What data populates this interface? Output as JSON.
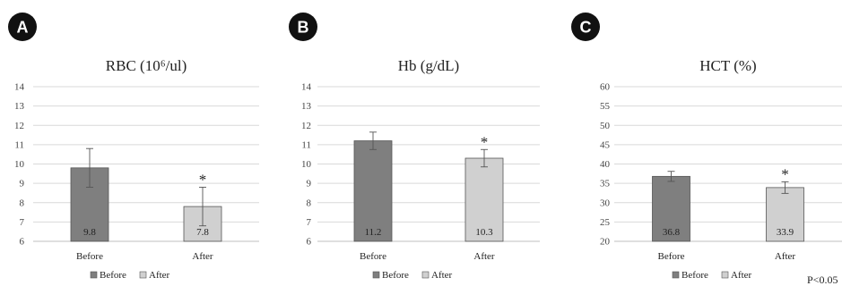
{
  "colors": {
    "before": "#7f7f7f",
    "after": "#d0d0d0",
    "badge": "#111111",
    "grid": "#d9d9d9"
  },
  "chart_data": [
    {
      "panel": "A",
      "type": "bar",
      "title": "RBC (10⁶/ul)",
      "categories": [
        "Before",
        "After"
      ],
      "values": [
        9.8,
        7.8
      ],
      "value_labels": [
        "9.8",
        "7.8"
      ],
      "error": [
        1.0,
        1.0
      ],
      "significance": [
        "",
        "*"
      ],
      "ylim": [
        6,
        14
      ],
      "yticks": [
        "6",
        "7",
        "8",
        "9",
        "10",
        "11",
        "12",
        "13",
        "14"
      ],
      "legend": [
        "Before",
        "After"
      ],
      "legend_position": "bottom",
      "grid": true
    },
    {
      "panel": "B",
      "type": "bar",
      "title": "Hb (g/dL)",
      "categories": [
        "Before",
        "After"
      ],
      "values": [
        11.2,
        10.3
      ],
      "value_labels": [
        "11.2",
        "10.3"
      ],
      "error": [
        0.45,
        0.45
      ],
      "significance": [
        "",
        "*"
      ],
      "ylim": [
        6,
        14
      ],
      "yticks": [
        "6",
        "7",
        "8",
        "9",
        "10",
        "11",
        "12",
        "13",
        "14"
      ],
      "legend": [
        "Before",
        "After"
      ],
      "legend_position": "bottom",
      "grid": true
    },
    {
      "panel": "C",
      "type": "bar",
      "title": "HCT (%)",
      "categories": [
        "Before",
        "After"
      ],
      "values": [
        36.8,
        33.9
      ],
      "value_labels": [
        "36.8",
        "33.9"
      ],
      "error": [
        1.3,
        1.5
      ],
      "significance": [
        "",
        "*"
      ],
      "ylim": [
        20,
        60
      ],
      "yticks": [
        "20",
        "25",
        "30",
        "35",
        "40",
        "45",
        "50",
        "55",
        "60"
      ],
      "legend": [
        "Before",
        "After"
      ],
      "legend_position": "bottom",
      "grid": true
    }
  ],
  "footnote": "P<0.05"
}
